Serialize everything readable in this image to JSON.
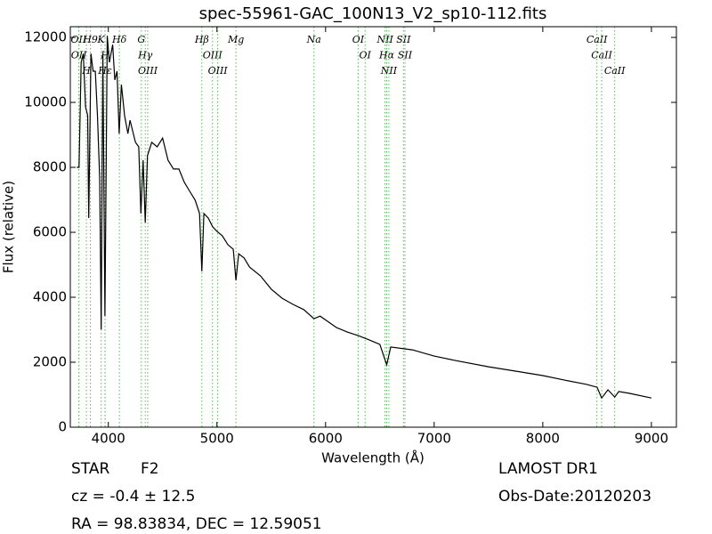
{
  "chart_data": {
    "type": "line",
    "title": "spec-55961-GAC_100N13_V2_sp10-112.fits",
    "xlabel": "Wavelength (Å)",
    "ylabel": "Flux (relative)",
    "xlim": [
      3650,
      9230
    ],
    "ylim": [
      0,
      12330
    ],
    "xticks": [
      4000,
      5000,
      6000,
      7000,
      8000,
      9000
    ],
    "yticks": [
      0,
      2000,
      4000,
      6000,
      8000,
      10000,
      12000
    ],
    "series": [
      {
        "color": "#000000",
        "x": [
          3710,
          3730,
          3750,
          3770,
          3790,
          3810,
          3820,
          3840,
          3860,
          3880,
          3900,
          3920,
          3934,
          3950,
          3969,
          3990,
          4010,
          4040,
          4060,
          4080,
          4100,
          4120,
          4150,
          4180,
          4200,
          4250,
          4280,
          4300,
          4320,
          4340,
          4360,
          4400,
          4450,
          4500,
          4550,
          4600,
          4650,
          4700,
          4750,
          4800,
          4840,
          4861,
          4880,
          4920,
          4960,
          5000,
          5050,
          5100,
          5150,
          5175,
          5200,
          5250,
          5300,
          5400,
          5500,
          5600,
          5700,
          5800,
          5893,
          5950,
          6100,
          6200,
          6300,
          6400,
          6500,
          6563,
          6600,
          6800,
          7000,
          7200,
          7500,
          7800,
          8000,
          8200,
          8400,
          8500,
          8542,
          8600,
          8662,
          8700,
          8800,
          9000
        ],
        "values": [
          8000,
          8000,
          11230,
          11500,
          9860,
          9600,
          6440,
          11500,
          10960,
          10960,
          9600,
          7670,
          3010,
          11500,
          3420,
          12050,
          11230,
          11780,
          10690,
          10960,
          9040,
          10550,
          9590,
          9040,
          9450,
          8770,
          8630,
          6580,
          8220,
          6300,
          8360,
          8770,
          8630,
          8900,
          8220,
          7950,
          7950,
          7540,
          7260,
          6990,
          6580,
          4800,
          6580,
          6440,
          6170,
          6030,
          5890,
          5620,
          5480,
          4520,
          5340,
          5210,
          4930,
          4660,
          4250,
          3970,
          3780,
          3620,
          3340,
          3420,
          3070,
          2930,
          2820,
          2690,
          2550,
          1920,
          2470,
          2380,
          2190,
          2050,
          1860,
          1700,
          1590,
          1450,
          1320,
          1230,
          900,
          1150,
          930,
          1100,
          1040,
          900
        ]
      }
    ],
    "lines": {
      "color": "#5cb85c",
      "wavelengths": [
        3727,
        3729,
        3798,
        3835,
        3934,
        3969,
        3970,
        4102,
        4304,
        4340,
        4363,
        4861,
        4959,
        5007,
        5175,
        5893,
        6300,
        6364,
        6548,
        6563,
        6583,
        6717,
        6731,
        8498,
        8542,
        8662
      ],
      "labels": [
        "OII",
        "OII",
        "H",
        "H9",
        "K",
        "H",
        "Hε",
        "Hδ",
        "G",
        "Hγ",
        "OIII",
        "Hβ",
        "OIII",
        "OIII",
        "Mg",
        "Na",
        "OI",
        "OI",
        "NII",
        "Hα",
        "NII",
        "SII",
        "SII",
        "CaII",
        "CaII",
        "CaII"
      ]
    },
    "footer": {
      "class": "STAR",
      "subclass": "F2",
      "cz": "cz = -0.4 ± 12.5",
      "coords": "RA = 98.83834, DEC = 12.59051",
      "survey": "LAMOST DR1",
      "date": "Obs-Date:20120203"
    }
  }
}
